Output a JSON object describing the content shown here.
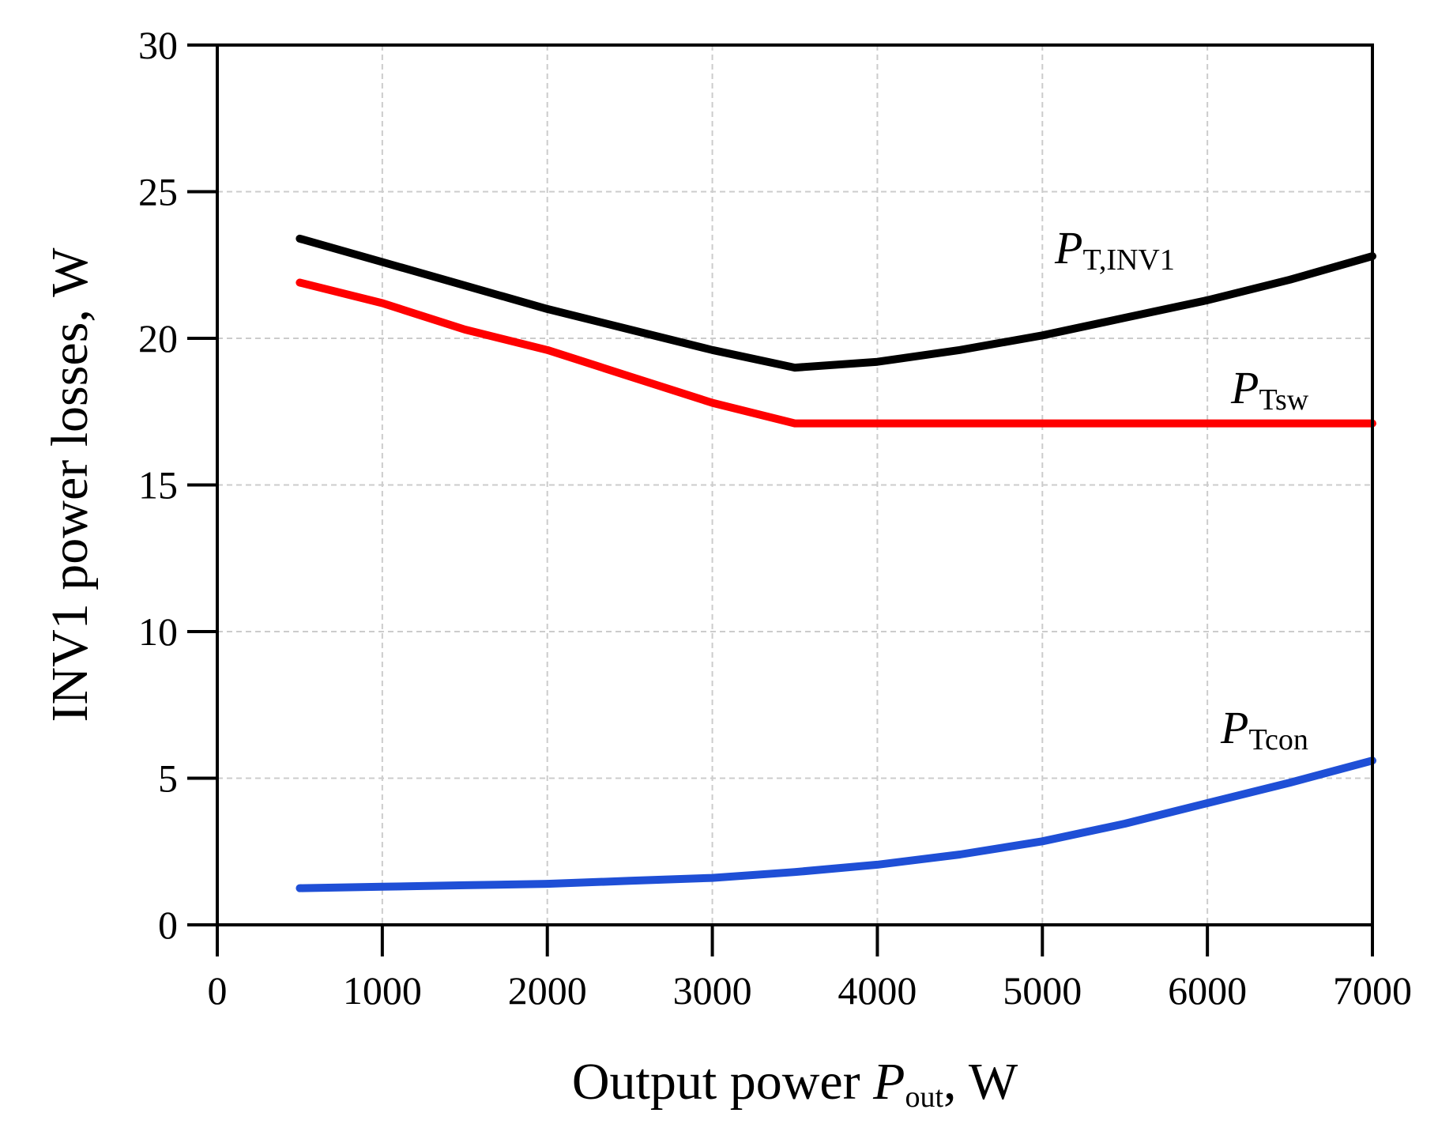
{
  "chart_data": {
    "type": "line",
    "title": "",
    "xlabel": {
      "prefix": "Output power ",
      "var": "P",
      "sub": "out",
      "suffix": ", W"
    },
    "ylabel": "INV1 power losses, W",
    "xlim": [
      0,
      7000
    ],
    "ylim": [
      0,
      30
    ],
    "xticks": [
      0,
      1000,
      2000,
      3000,
      4000,
      5000,
      6000,
      7000
    ],
    "yticks": [
      0,
      5,
      10,
      15,
      20,
      25,
      30
    ],
    "xtick_labels": [
      "0",
      "1000",
      "2000",
      "3000",
      "4000",
      "5000",
      "6000",
      "7000"
    ],
    "ytick_labels": [
      "0",
      "5",
      "10",
      "15",
      "20",
      "25",
      "30"
    ],
    "grid": true,
    "series": [
      {
        "name": "P_T,INV1",
        "label_var": "P",
        "label_sub": "T,INV1",
        "color": "#000000",
        "x": [
          500,
          1000,
          1500,
          2000,
          2500,
          3000,
          3500,
          4000,
          4500,
          5000,
          5500,
          6000,
          6500,
          7000
        ],
        "y": [
          23.4,
          22.6,
          21.8,
          21.0,
          20.3,
          19.6,
          19.0,
          19.2,
          19.6,
          20.1,
          20.7,
          21.3,
          22.0,
          22.8
        ]
      },
      {
        "name": "P_Tsw",
        "label_var": "P",
        "label_sub": "Tsw",
        "color": "#ff0000",
        "x": [
          500,
          1000,
          1500,
          2000,
          2500,
          3000,
          3500,
          4000,
          5000,
          6000,
          7000
        ],
        "y": [
          21.9,
          21.2,
          20.3,
          19.6,
          18.7,
          17.8,
          17.1,
          17.1,
          17.1,
          17.1,
          17.1
        ]
      },
      {
        "name": "P_Tcon",
        "label_var": "P",
        "label_sub": "Tcon",
        "color": "#1f4fd6",
        "x": [
          500,
          1000,
          1500,
          2000,
          2500,
          3000,
          3500,
          4000,
          4500,
          5000,
          5500,
          6000,
          6500,
          7000
        ],
        "y": [
          1.25,
          1.3,
          1.35,
          1.4,
          1.5,
          1.6,
          1.8,
          2.05,
          2.4,
          2.85,
          3.45,
          4.15,
          4.85,
          5.6
        ]
      }
    ]
  }
}
